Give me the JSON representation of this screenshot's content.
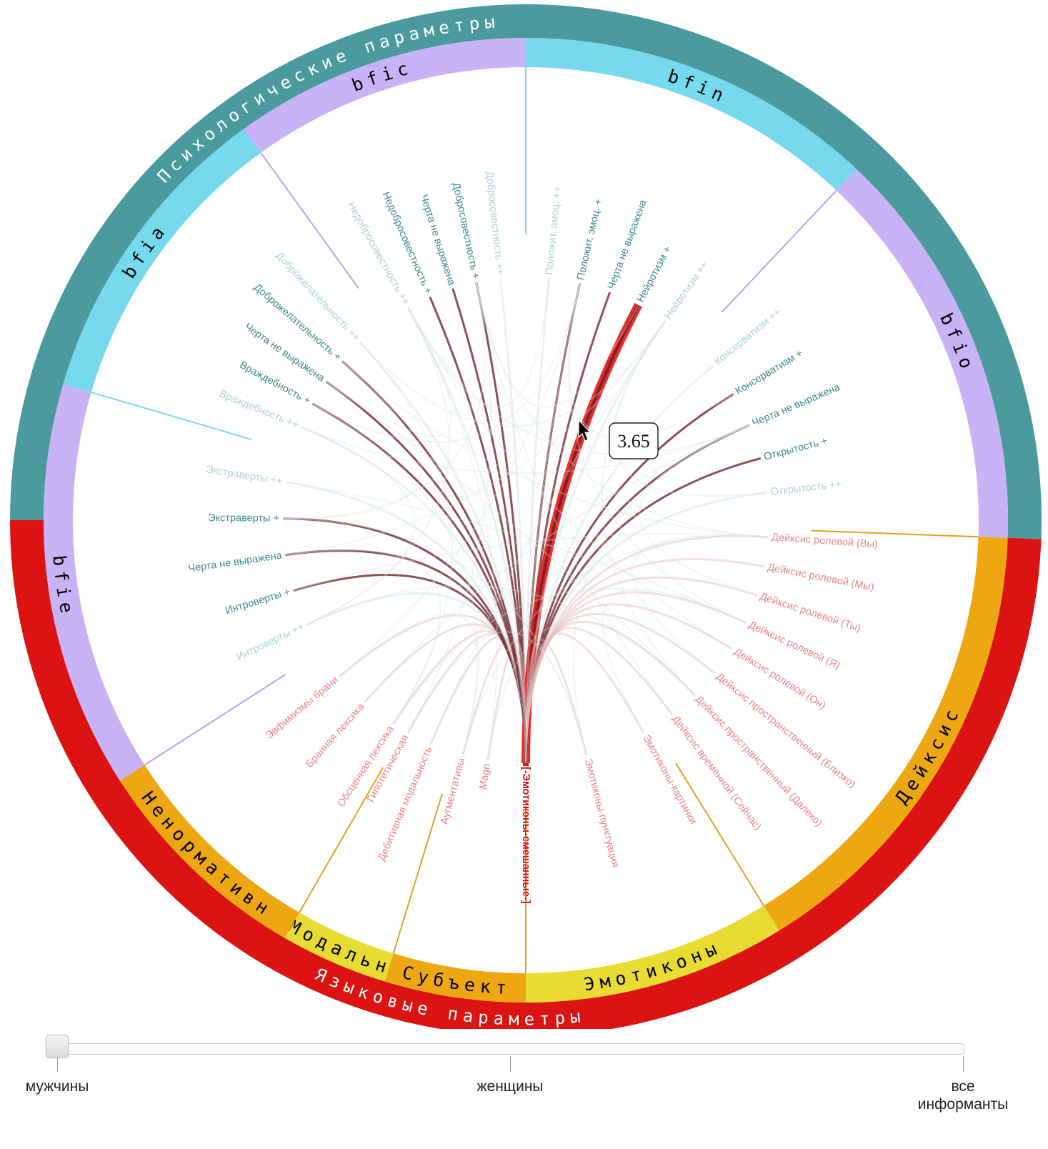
{
  "diagram": {
    "super_groups": [
      {
        "label": "Психологические параметры",
        "color": "#4A9A9E"
      },
      {
        "label": "Языковые параметры",
        "color": "#DC1313"
      }
    ],
    "groups": [
      {
        "label": "bfic",
        "color": "#C8B3F7",
        "super": 0,
        "nodes": [
          "Недобросовестность ++",
          "Недобросовестность +",
          "Черта не выражена",
          "Добросовестность +",
          "Добросовестность ++"
        ]
      },
      {
        "label": "bfin",
        "color": "#76D9EE",
        "super": 0,
        "nodes": [
          "Положит. эмоц. ++",
          "Положит. эмоц. +",
          "Черта не выражена",
          "Нейротизм +",
          "Нейротизм ++"
        ]
      },
      {
        "label": "bfio",
        "color": "#C8B3F7",
        "super": 0,
        "nodes": [
          "Консерватизм ++",
          "Консерватизм +",
          "Черта не выражена",
          "Открытость +",
          "Открытость ++"
        ]
      },
      {
        "label": "Дейксис",
        "color": "#EDA712",
        "super": 1,
        "nodes": [
          "Дейксис ролевой (Вы)",
          "Дейксис ролевой (Мы)",
          "Дейксис ролевой (Ты)",
          "Дейксис ролевой (Я)",
          "Дейксис ролевой (Он)",
          "Дейксис пространственный (Близко)",
          "Дейксис пространственный (Далеко)",
          "Дейксис временной (Сейчас)"
        ]
      },
      {
        "label": "Эмотиконы",
        "color": "#E8DC32",
        "super": 1,
        "nodes": [
          "Эмотиконы-картинки",
          "Эмотиконы-пунктуация",
          "[-Эмотиконы-смешанные-]"
        ]
      },
      {
        "label": "Субъект",
        "color": "#EDA712",
        "super": 1,
        "nodes": [
          "Magn",
          "Аугментативы"
        ]
      },
      {
        "label": "Модальн",
        "color": "#E8DC32",
        "super": 1,
        "nodes": [
          "Дебитивная модальность",
          "Гипотетическая"
        ]
      },
      {
        "label": "Ненормативн",
        "color": "#EDA712",
        "super": 1,
        "nodes": [
          "Обсценная лексика",
          "Бранная лексика",
          "Эвфимизмы брани"
        ]
      },
      {
        "label": "bfie",
        "color": "#C8B3F7",
        "super": 0,
        "nodes": [
          "Интроверты ++",
          "Интроверты +",
          "Черта не выражена",
          "Экстраверты +",
          "Экстраверты ++"
        ]
      },
      {
        "label": "bfia",
        "color": "#76D9EE",
        "super": 0,
        "nodes": [
          "Враждебность ++",
          "Враждебность +",
          "Черта не выражена",
          "Доброжелательность +",
          "Доброжелательность ++"
        ]
      }
    ],
    "focus_node": "[-Эмотиконы-смешанные-]",
    "highlight_node": "Нейротизм +",
    "tooltip_value": "3.65",
    "colors": {
      "psych_text": "#3E8A8E",
      "psych_faint": "#A9D3D6",
      "ling_text": "#E98585",
      "focus_text": "#D40E0E",
      "chord_dark": "#7A3338",
      "chord_red": "#E41515"
    }
  },
  "slider": {
    "ticks": [
      {
        "label": "мужчины",
        "position": 0
      },
      {
        "label": "женщины",
        "position": 0.5
      },
      {
        "label": "все\nинформанты",
        "position": 1
      }
    ],
    "value": 0
  }
}
